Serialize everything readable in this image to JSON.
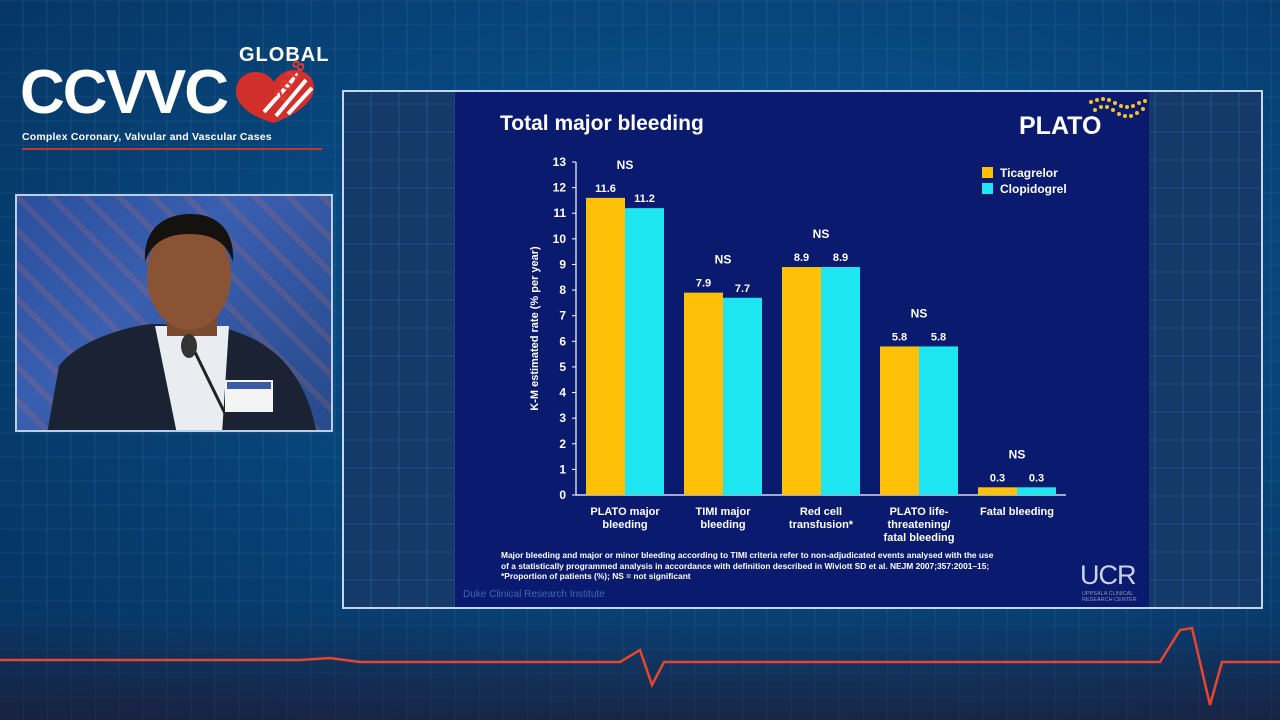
{
  "logo": {
    "global": "GLOBAL",
    "main": "CCVVC",
    "year": "2018",
    "subtitle": "Complex Coronary, Valvular and Vascular Cases"
  },
  "slide": {
    "title": "Total major bleeding",
    "brand": "PLATO",
    "footnote_lines": [
      "Major bleeding and major or minor bleeding according to TIMI criteria refer to non-adjudicated events analysed with the use",
      "of a statistically programmed analysis in accordance with definition described in Wiviott SD et al. NEJM 2007;357:2001–15;",
      "*Proportion of patients (%); NS = not significant"
    ],
    "duke_label": "Duke Clinical Research Institute",
    "ucr_label": "UCR",
    "ucr_sub": "UPPSALA CLINICAL RESEARCH CENTER"
  },
  "colors": {
    "ticagrelor": "#ffc107",
    "clopidogrel": "#1ee6f0",
    "slide_bg": "#0a1a6e",
    "accent_red": "#e03a34"
  },
  "icons": [
    "plato-dots-icon",
    "heart-stripes-icon",
    "ekg-line-icon"
  ],
  "chart_data": {
    "type": "bar",
    "title": "Total major bleeding",
    "ylabel": "K-M estimated rate (% per year)",
    "xlabel": "",
    "ylim": [
      0,
      13
    ],
    "yticks": [
      0,
      1,
      2,
      3,
      4,
      5,
      6,
      7,
      8,
      9,
      10,
      11,
      12,
      13
    ],
    "categories": [
      [
        "PLATO major",
        "bleeding"
      ],
      [
        "TIMI major",
        "bleeding"
      ],
      [
        "Red cell",
        "transfusion*"
      ],
      [
        "PLATO life-",
        "threatening/",
        "fatal bleeding"
      ],
      [
        "Fatal bleeding"
      ]
    ],
    "series": [
      {
        "name": "Ticagrelor",
        "values": [
          11.6,
          7.9,
          8.9,
          5.8,
          0.3
        ]
      },
      {
        "name": "Clopidogrel",
        "values": [
          11.2,
          7.7,
          8.9,
          5.8,
          0.3
        ]
      }
    ],
    "value_labels": [
      [
        "11.6",
        "11.2"
      ],
      [
        "7.9",
        "7.7"
      ],
      [
        "8.9",
        "8.9"
      ],
      [
        "5.8",
        "5.8"
      ],
      [
        "0.3",
        "0.3"
      ]
    ],
    "significance": [
      "NS",
      "NS",
      "NS",
      "NS",
      "NS"
    ],
    "legend_position": "top-right",
    "grid": false
  }
}
